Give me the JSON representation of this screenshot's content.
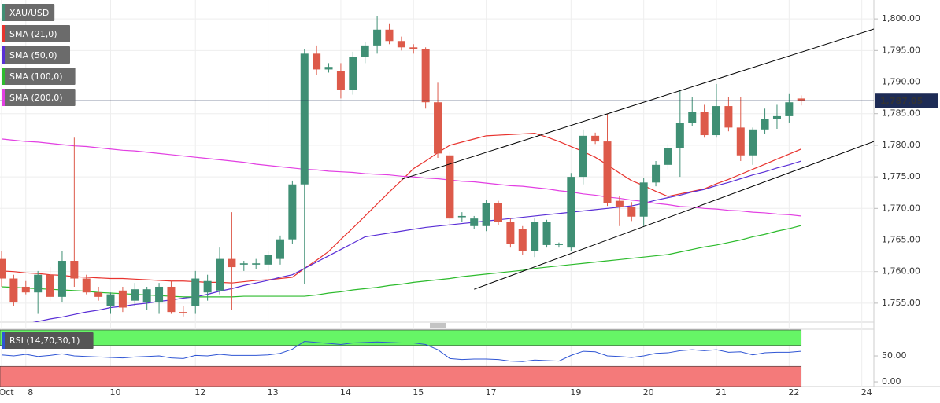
{
  "chart_data": [
    {
      "type": "candlestick",
      "categories": [
        "Oct",
        null,
        "8",
        null,
        null,
        null,
        null,
        null,
        null,
        "10",
        null,
        null,
        null,
        null,
        null,
        null,
        "12",
        null,
        null,
        null,
        null,
        null,
        "13",
        null,
        null,
        null,
        null,
        null,
        "14",
        null,
        null,
        null,
        null,
        null,
        "15",
        null,
        null,
        null,
        null,
        null,
        "17",
        null,
        null,
        null,
        null,
        null,
        null,
        "19",
        null,
        null,
        null,
        null,
        null,
        "20",
        null,
        null,
        null,
        null,
        null,
        "21",
        null,
        null,
        null,
        null,
        null,
        "22",
        null,
        null,
        null,
        null,
        null,
        "24"
      ],
      "candles": {
        "name": "XAU/USD",
        "legend_color": "#3f8f74",
        "up_color": "#3f8f74",
        "down_color": "#dd5a4a",
        "open": [
          1762.0,
          1758.9,
          1757.6,
          1756.7,
          1759.5,
          1756.0,
          1761.7,
          1758.9,
          1756.7,
          1754.5,
          1757.0,
          1755.4,
          1755.1,
          1755.1,
          1757.6,
          1753.6,
          1754.5,
          1756.7,
          1757.0,
          1762.0,
          1761.1,
          1761.1,
          1761.1,
          1762.0,
          1765.1,
          1773.8,
          1794.5,
          1792.0,
          1791.8,
          1788.7,
          1794.0,
          1795.8,
          1798.3,
          1796.5,
          1795.5,
          1795.2,
          1786.8,
          1778.4,
          1768.6,
          1767.2,
          1767.2,
          1770.9,
          1767.8,
          1766.7,
          1763.2,
          1764.2,
          1764.2,
          1763.8,
          1775.0,
          1781.5,
          1780.6,
          1771.2,
          1770.2,
          1768.7,
          1774.1,
          1776.9,
          1779.6,
          1783.5,
          1785.3,
          1781.6,
          1786.2,
          1782.8,
          1778.4,
          1782.5,
          1784.1,
          1784.6,
          1787.4,
          null,
          null,
          null,
          null,
          null
        ],
        "high": [
          1763.2,
          1759.5,
          1758.5,
          1760.1,
          1760.7,
          1763.2,
          1781.2,
          1759.5,
          1757.6,
          1756.7,
          1757.6,
          1758.2,
          1757.6,
          1758.2,
          1758.5,
          1754.5,
          1760.1,
          1759.5,
          1763.8,
          1769.4,
          1761.7,
          1762.0,
          1763.2,
          1765.7,
          1774.4,
          1795.2,
          1795.8,
          1793.0,
          1793.0,
          1794.8,
          1796.4,
          1800.5,
          1799.3,
          1797.2,
          1796.0,
          1795.5,
          1789.9,
          1779.0,
          1769.4,
          1768.8,
          1771.4,
          1771.2,
          1768.4,
          1767.2,
          1768.4,
          1768.2,
          1764.6,
          1775.6,
          1782.5,
          1782.0,
          1784.9,
          1772.0,
          1771.0,
          1774.8,
          1777.5,
          1780.2,
          1788.7,
          1787.7,
          1786.4,
          1789.7,
          1787.7,
          1787.7,
          1782.8,
          1785.8,
          1786.4,
          1788.1,
          1787.9,
          null,
          null,
          null,
          null,
          null
        ],
        "low": [
          1757.6,
          1754.5,
          1756.4,
          1753.3,
          1755.4,
          1755.1,
          1757.6,
          1756.4,
          1755.4,
          1753.3,
          1753.6,
          1754.5,
          1753.9,
          1753.3,
          1753.3,
          1752.9,
          1753.3,
          1755.4,
          1756.4,
          1753.9,
          1760.1,
          1760.4,
          1760.1,
          1761.1,
          1764.4,
          1758.0,
          1791.1,
          1791.5,
          1787.4,
          1788.0,
          1793.0,
          1794.5,
          1796.0,
          1795.0,
          1794.5,
          1785.8,
          1778.0,
          1767.2,
          1767.9,
          1766.7,
          1766.4,
          1767.3,
          1763.8,
          1762.7,
          1762.3,
          1763.8,
          1763.8,
          1763.2,
          1773.8,
          1780.2,
          1770.4,
          1767.2,
          1768.0,
          1767.2,
          1773.5,
          1776.2,
          1775.0,
          1783.0,
          1781.2,
          1781.2,
          1782.2,
          1777.5,
          1776.9,
          1781.8,
          1782.6,
          1783.6,
          1786.3,
          null,
          null,
          null,
          null,
          null
        ],
        "close": [
          1758.9,
          1755.1,
          1756.7,
          1759.5,
          1756.0,
          1761.7,
          1758.9,
          1756.7,
          1756.0,
          1756.4,
          1754.3,
          1757.2,
          1757.2,
          1757.6,
          1753.6,
          1753.4,
          1758.9,
          1758.5,
          1762.0,
          1760.7,
          1761.3,
          1761.3,
          1762.6,
          1765.1,
          1773.8,
          1794.5,
          1792.0,
          1792.4,
          1788.7,
          1794.0,
          1795.8,
          1798.3,
          1796.5,
          1795.5,
          1795.2,
          1786.8,
          1778.7,
          1768.4,
          1768.8,
          1768.4,
          1770.9,
          1767.9,
          1764.4,
          1763.2,
          1767.8,
          1767.8,
          1764.4,
          1775.0,
          1781.5,
          1780.6,
          1770.9,
          1770.2,
          1768.7,
          1774.1,
          1776.9,
          1779.6,
          1783.5,
          1785.3,
          1781.6,
          1786.2,
          1782.8,
          1778.4,
          1782.5,
          1784.1,
          1784.6,
          1786.8,
          1787.05,
          null,
          null,
          null,
          null,
          null
        ]
      },
      "overlays": [
        {
          "name": "SMA (21,0)",
          "color": "#e8332e",
          "values": [
            1760.1,
            1760.0,
            1759.8,
            1759.7,
            1759.5,
            1759.4,
            1759.2,
            1759.1,
            1759.0,
            1758.9,
            1758.9,
            1758.8,
            1758.7,
            1758.6,
            1758.5,
            1758.5,
            1758.4,
            1758.3,
            1758.3,
            1758.2,
            1758.4,
            1758.6,
            1758.7,
            1758.9,
            1759.1,
            1760.5,
            1761.8,
            1763.2,
            1765.1,
            1766.9,
            1768.8,
            1770.7,
            1772.6,
            1774.4,
            1776.3,
            1777.5,
            1778.8,
            1780.0,
            1780.5,
            1781.0,
            1781.5,
            1781.6,
            1781.7,
            1781.8,
            1781.9,
            1781.3,
            1780.6,
            1779.8,
            1779.0,
            1778.1,
            1776.9,
            1775.6,
            1774.4,
            1773.6,
            1772.7,
            1771.9,
            1772.3,
            1772.7,
            1773.1,
            1773.9,
            1774.6,
            1775.4,
            1776.2,
            1777.0,
            1777.8,
            1778.6,
            1779.4,
            null,
            null,
            null,
            null,
            null
          ]
        },
        {
          "name": "SMA (50,0)",
          "color": "#5a2fd6",
          "values": [
            1751.0,
            1751.4,
            1751.7,
            1752.1,
            1752.5,
            1752.8,
            1753.2,
            1753.6,
            1753.9,
            1754.3,
            1754.5,
            1754.8,
            1755.0,
            1755.3,
            1755.5,
            1755.8,
            1756.0,
            1756.4,
            1756.9,
            1757.3,
            1757.8,
            1758.2,
            1758.6,
            1759.1,
            1759.5,
            1760.5,
            1761.5,
            1762.5,
            1763.5,
            1764.5,
            1765.5,
            1765.8,
            1766.1,
            1766.4,
            1766.7,
            1767.0,
            1767.2,
            1767.4,
            1767.6,
            1767.8,
            1768.0,
            1768.2,
            1768.4,
            1768.6,
            1768.8,
            1769.0,
            1769.2,
            1769.4,
            1769.6,
            1769.8,
            1770.0,
            1770.2,
            1770.4,
            1770.8,
            1771.3,
            1771.7,
            1772.1,
            1772.6,
            1773.0,
            1773.6,
            1774.1,
            1774.7,
            1775.3,
            1775.8,
            1776.4,
            1776.9,
            1777.5,
            null,
            null,
            null,
            null,
            null
          ]
        },
        {
          "name": "SMA (100,0)",
          "color": "#2dbb2d",
          "values": [
            1757.6,
            1757.5,
            1757.4,
            1757.3,
            1757.2,
            1757.1,
            1757.0,
            1756.9,
            1756.7,
            1756.6,
            1756.5,
            1756.4,
            1756.3,
            1756.2,
            1756.1,
            1756.0,
            1756.0,
            1756.0,
            1756.0,
            1756.0,
            1756.1,
            1756.1,
            1756.1,
            1756.1,
            1756.1,
            1756.1,
            1756.3,
            1756.6,
            1756.8,
            1757.1,
            1757.3,
            1757.5,
            1757.8,
            1758.0,
            1758.3,
            1758.5,
            1758.7,
            1758.9,
            1759.2,
            1759.4,
            1759.6,
            1759.8,
            1760.0,
            1760.2,
            1760.5,
            1760.7,
            1760.9,
            1761.1,
            1761.3,
            1761.5,
            1761.7,
            1761.9,
            1762.1,
            1762.3,
            1762.5,
            1762.7,
            1763.1,
            1763.5,
            1763.9,
            1764.2,
            1764.6,
            1765.0,
            1765.5,
            1765.9,
            1766.4,
            1766.8,
            1767.3,
            null,
            null,
            null,
            null,
            null
          ]
        },
        {
          "name": "SMA (200,0)",
          "color": "#e23fe2",
          "values": [
            1781.0,
            1780.8,
            1780.6,
            1780.5,
            1780.3,
            1780.1,
            1779.9,
            1779.8,
            1779.6,
            1779.4,
            1779.2,
            1779.1,
            1778.9,
            1778.7,
            1778.5,
            1778.3,
            1778.1,
            1777.9,
            1777.7,
            1777.5,
            1777.3,
            1777.0,
            1776.8,
            1776.6,
            1776.4,
            1776.2,
            1776.1,
            1775.9,
            1775.8,
            1775.7,
            1775.5,
            1775.4,
            1775.3,
            1775.1,
            1775.0,
            1774.8,
            1774.7,
            1774.5,
            1774.3,
            1774.2,
            1774.0,
            1773.8,
            1773.6,
            1773.5,
            1773.3,
            1773.1,
            1772.8,
            1772.6,
            1772.3,
            1772.1,
            1771.8,
            1771.6,
            1771.3,
            1771.1,
            1770.8,
            1770.6,
            1770.3,
            1770.2,
            1770.0,
            1769.9,
            1769.7,
            1769.6,
            1769.4,
            1769.3,
            1769.1,
            1769.0,
            1768.8,
            null,
            null,
            null,
            null,
            null
          ]
        }
      ],
      "ylim": [
        1752.0,
        1803.0
      ],
      "yticks": [
        {
          "value": 1755,
          "label": "1,755.00"
        },
        {
          "value": 1760,
          "label": "1,760.00"
        },
        {
          "value": 1765,
          "label": "1,765.00"
        },
        {
          "value": 1770,
          "label": "1,770.00"
        },
        {
          "value": 1775,
          "label": "1,775.00"
        },
        {
          "value": 1780,
          "label": "1,780.00"
        },
        {
          "value": 1785,
          "label": "1,785.00"
        },
        {
          "value": 1790,
          "label": "1,790.00"
        },
        {
          "value": 1795,
          "label": "1,795.00"
        },
        {
          "value": 1800,
          "label": "1,800.00"
        }
      ],
      "grid": true,
      "last_price": {
        "value": 1787.05,
        "label": "1,787.05",
        "color": "#1d2b55"
      },
      "trendlines": [
        {
          "color": "#000000",
          "x": [
            33,
            72
          ],
          "y": [
            1774.6,
            1798.4
          ]
        },
        {
          "color": "#000000",
          "x": [
            39,
            72
          ],
          "y": [
            1757.2,
            1780.6
          ]
        }
      ]
    },
    {
      "type": "line",
      "name": "RSI (14,70,30,1)",
      "color": "#2f55d4",
      "values": [
        52,
        50,
        53,
        49,
        51,
        54,
        50,
        49,
        48,
        47,
        46,
        48,
        49,
        50,
        46,
        45,
        51,
        50,
        53,
        51,
        51,
        51,
        52,
        55,
        63,
        78,
        76,
        74,
        72,
        75,
        76,
        77,
        76,
        75,
        75,
        72,
        62,
        45,
        43,
        44,
        44,
        43,
        40,
        39,
        42,
        41,
        40,
        51,
        59,
        58,
        50,
        49,
        47,
        50,
        55,
        56,
        60,
        62,
        60,
        62,
        57,
        58,
        52,
        56,
        57,
        57,
        59,
        null,
        null,
        null,
        null,
        null
      ],
      "ylim": [
        -9,
        100
      ],
      "yticks": [
        {
          "value": 50,
          "label": "50.00"
        },
        {
          "value": 0,
          "label": "0.00"
        }
      ],
      "overbought": 70,
      "overbought_color": "#66f566",
      "oversold": 30,
      "oversold_color": "#f47a7a"
    }
  ]
}
